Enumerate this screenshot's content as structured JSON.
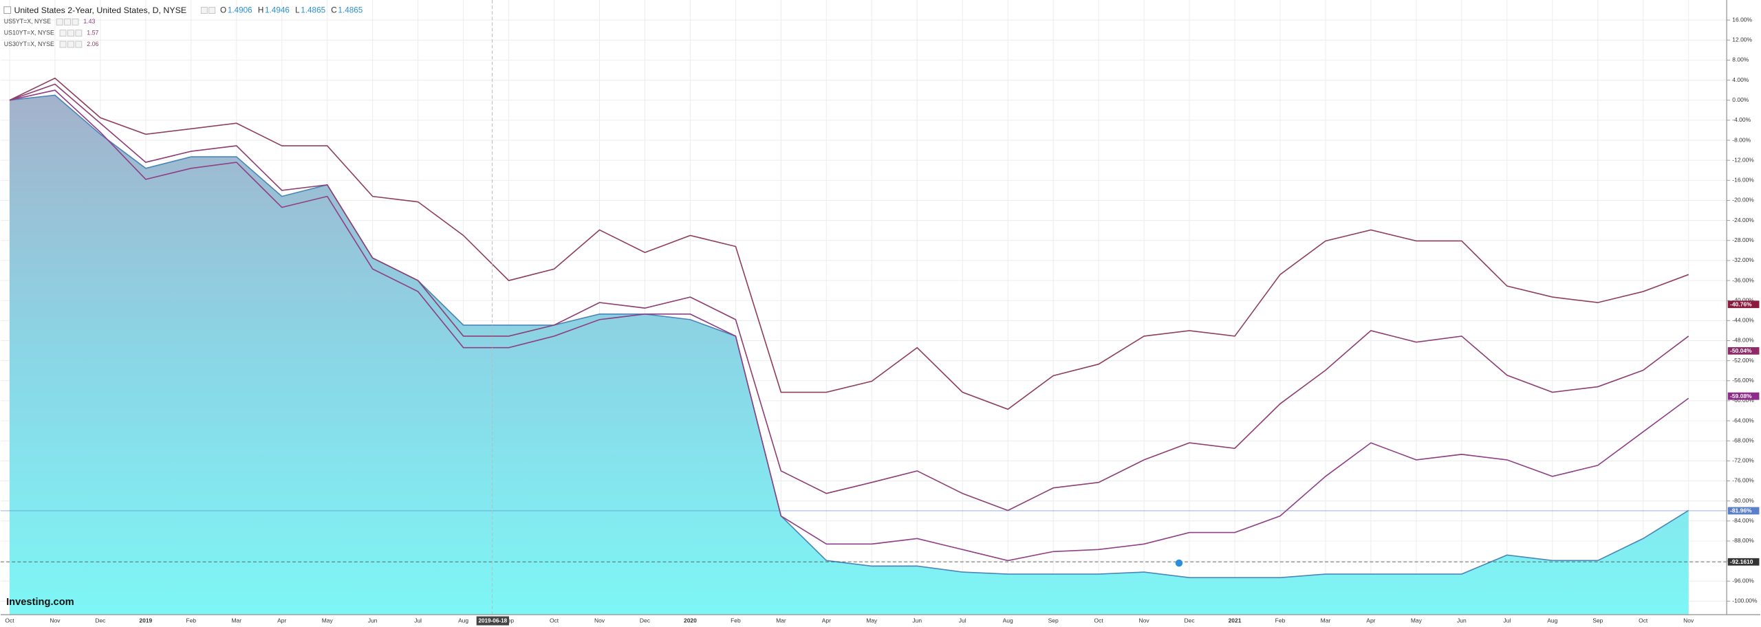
{
  "chart_data": {
    "type": "line",
    "title": "United States 2-Year, United States, D, NYSE",
    "ohlc": [
      {
        "label": "O",
        "value": 1.4906
      },
      {
        "label": "H",
        "value": 1.4946
      },
      {
        "label": "L",
        "value": 1.4865
      },
      {
        "label": "C",
        "value": 1.4865
      }
    ],
    "categories": [
      "Oct",
      "Nov",
      "Dec",
      "2019",
      "Feb",
      "Mar",
      "Apr",
      "May",
      "Jun",
      "Jul",
      "Aug",
      "Sep",
      "Oct",
      "Nov",
      "Dec",
      "2020",
      "Feb",
      "Mar",
      "Apr",
      "May",
      "Jun",
      "Jul",
      "Aug",
      "Sep",
      "Oct",
      "Nov",
      "Dec",
      "2021",
      "Feb",
      "Mar",
      "Apr",
      "May",
      "Jun",
      "Jul",
      "Aug",
      "Sep",
      "Oct",
      "Nov"
    ],
    "series": [
      {
        "name": "United States 2-Year, United States, D, NYSE",
        "color": "#4a86b8",
        "area": true,
        "values": [
          0,
          1,
          -6.8,
          -13.6,
          -11.3,
          -11.3,
          -19.2,
          -16.9,
          -31.5,
          -36,
          -44.9,
          -44.9,
          -44.9,
          -42.7,
          -42.7,
          -43.8,
          -47.1,
          -83,
          -91.9,
          -93,
          -93,
          -94.2,
          -94.6,
          -94.6,
          -94.6,
          -94.2,
          -95.3,
          -95.3,
          -95.3,
          -94.6,
          -94.6,
          -94.6,
          -94.6,
          -90.8,
          -91.9,
          -91.9,
          -87.5,
          -81.9
        ]
      },
      {
        "name": "US5YT=X, NYSE",
        "color": "#8e3f86",
        "quote": 1.43,
        "values": [
          0,
          2,
          -6.4,
          -15.8,
          -13.6,
          -12.4,
          -21.4,
          -19.2,
          -33.7,
          -38.2,
          -49.4,
          -49.4,
          -47.1,
          -43.8,
          -42.7,
          -42.7,
          -47.1,
          -83,
          -88.6,
          -88.6,
          -87.5,
          -89.7,
          -91.9,
          -90.1,
          -89.7,
          -88.6,
          -86.3,
          -86.3,
          -83,
          -75.1,
          -68.4,
          -71.8,
          -70.7,
          -71.8,
          -75.1,
          -72.9,
          -66.2,
          -59.5
        ]
      },
      {
        "name": "US10YT=X, NYSE",
        "color": "#8e3f72",
        "quote": 1.57,
        "values": [
          0,
          3.2,
          -4.6,
          -12.4,
          -10.2,
          -9.1,
          -18,
          -16.9,
          -31.5,
          -36,
          -47.1,
          -47.1,
          -44.9,
          -40.4,
          -41.5,
          -39.3,
          -43.8,
          -74,
          -78.5,
          -76.3,
          -74,
          -78.5,
          -81.9,
          -77.4,
          -76.3,
          -71.8,
          -68.4,
          -69.5,
          -60.6,
          -53.9,
          -46,
          -48.3,
          -47.1,
          -54.9,
          -58.3,
          -57.2,
          -53.9,
          -47.1
        ]
      },
      {
        "name": "US30YT=X, NYSE",
        "color": "#8e3f5e",
        "quote": 2.06,
        "values": [
          0,
          4.4,
          -3.5,
          -6.8,
          -5.7,
          -4.6,
          -9.1,
          -9.1,
          -19.2,
          -20.3,
          -27,
          -36,
          -33.7,
          -25.9,
          -30.4,
          -27,
          -29.2,
          -58.3,
          -58.3,
          -56.1,
          -49.4,
          -58.3,
          -61.7,
          -55,
          -52.7,
          -47.1,
          -46,
          -47.1,
          -34.8,
          -28.1,
          -25.9,
          -28.1,
          -28.1,
          -37.1,
          -39.3,
          -40.4,
          -38.2,
          -34.8
        ]
      }
    ],
    "ylim": [
      -102.7,
      20
    ],
    "yticks": [
      {
        "value": 16,
        "label": "16.00%"
      },
      {
        "value": 12,
        "label": "12.00%"
      },
      {
        "value": 8,
        "label": "8.00%"
      },
      {
        "value": 4,
        "label": "4.00%"
      },
      {
        "value": 0,
        "label": "0.00%"
      },
      {
        "value": -4,
        "label": "-4.00%"
      },
      {
        "value": -8,
        "label": "-8.00%"
      },
      {
        "value": -12,
        "label": "-12.00%"
      },
      {
        "value": -16,
        "label": "-16.00%"
      },
      {
        "value": -20,
        "label": "-20.00%"
      },
      {
        "value": -24,
        "label": "-24.00%"
      },
      {
        "value": -28,
        "label": "-28.00%"
      },
      {
        "value": -32,
        "label": "-32.00%"
      },
      {
        "value": -36,
        "label": "-36.00%"
      },
      {
        "value": -40,
        "label": "-40.00%"
      },
      {
        "value": -44,
        "label": "-44.00%"
      },
      {
        "value": -48,
        "label": "-48.00%"
      },
      {
        "value": -52,
        "label": "-52.00%"
      },
      {
        "value": -56,
        "label": "-56.00%"
      },
      {
        "value": -60,
        "label": "-60.00%"
      },
      {
        "value": -64,
        "label": "-64.00%"
      },
      {
        "value": -68,
        "label": "-68.00%"
      },
      {
        "value": -72,
        "label": "-72.00%"
      },
      {
        "value": -76,
        "label": "-76.00%"
      },
      {
        "value": -80,
        "label": "-80.00%"
      },
      {
        "value": -84,
        "label": "-84.00%"
      },
      {
        "value": -88,
        "label": "-88.00%"
      },
      {
        "value": -92,
        "label": "-92.00%"
      },
      {
        "value": -96,
        "label": "-96.00%"
      },
      {
        "value": -100,
        "label": "-100.00%"
      }
    ],
    "grid": true,
    "price_labels": [
      {
        "value": -40.76,
        "label": "-40.76%",
        "color": "#8b1a3c"
      },
      {
        "value": -50.04,
        "label": "-50.04%",
        "color": "#8e2a66"
      },
      {
        "value": -59.08,
        "label": "-59.08%",
        "color": "#8e2a8a"
      },
      {
        "value": -81.96,
        "label": "-81.96%",
        "color": "#5b7fc9",
        "line": "solid"
      },
      {
        "value": -92.161,
        "label": "-92.1610",
        "color": "#333333",
        "line": "dashed"
      }
    ],
    "crosshair": "2019-06-18",
    "watermark": "Investing.com"
  }
}
